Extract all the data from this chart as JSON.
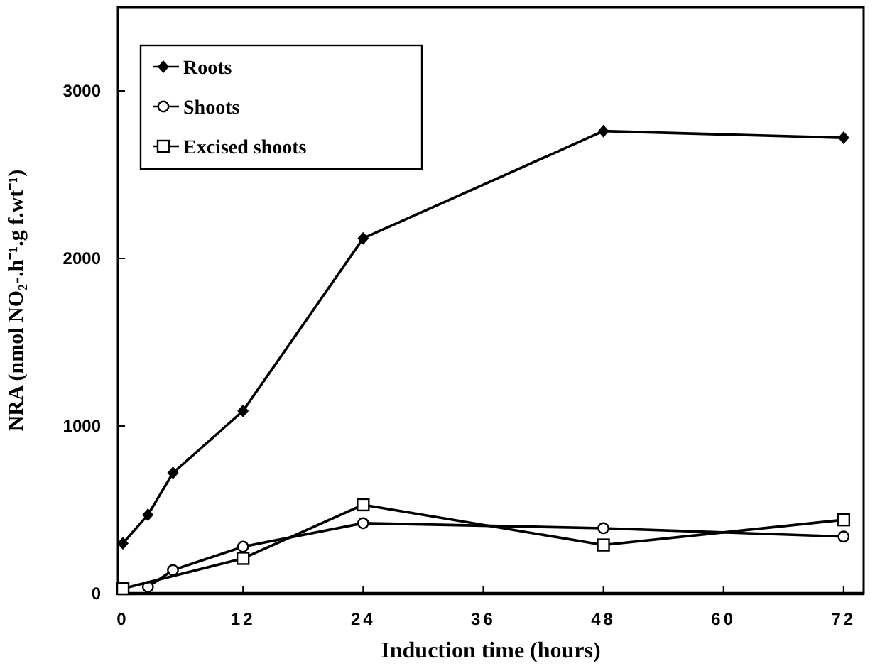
{
  "chart_data": {
    "type": "line",
    "xlabel": "Induction time (hours)",
    "ylabel": "NRA (nmol NO₂-.h⁻¹.g f.wt⁻¹)",
    "xlim": [
      -0.5,
      74
    ],
    "xticks": [
      0,
      12,
      24,
      36,
      48,
      60,
      72
    ],
    "ylim": [
      0,
      3500
    ],
    "yticks": [
      0,
      1000,
      2000,
      3000
    ],
    "legend": "top left",
    "grid": false,
    "series": [
      {
        "name": "Roots",
        "color": "#000000",
        "marker": "diamond",
        "x": [
          0,
          2.5,
          5,
          12,
          24,
          48,
          72
        ],
        "values": [
          300,
          470,
          720,
          1090,
          2120,
          2760,
          2720
        ]
      },
      {
        "name": "Shoots",
        "color": "#000000",
        "marker": "circle",
        "x": [
          2.5,
          5,
          12,
          24,
          48,
          72
        ],
        "values": [
          40,
          140,
          280,
          420,
          390,
          340
        ]
      },
      {
        "name": "Excised shoots",
        "color": "#000000",
        "marker": "square",
        "x": [
          0,
          12,
          24,
          48,
          72
        ],
        "values": [
          30,
          210,
          530,
          290,
          440
        ]
      }
    ]
  }
}
